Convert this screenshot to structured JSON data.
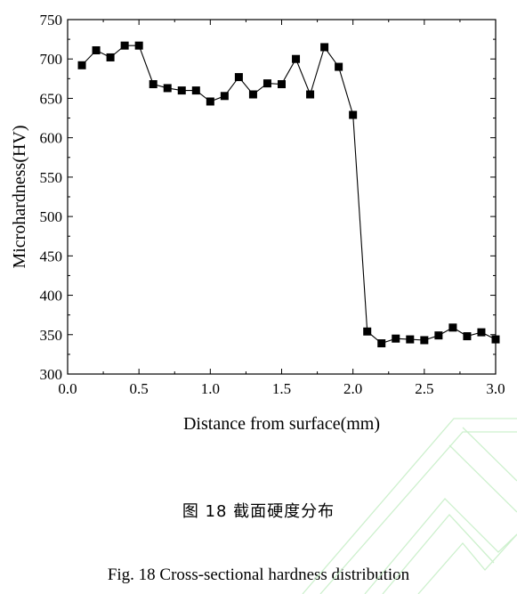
{
  "chart_data": {
    "type": "line",
    "xlabel": "Distance from surface(mm)",
    "ylabel": "Microhardness(HV)",
    "xlim": [
      0.0,
      3.0
    ],
    "ylim": [
      300,
      750
    ],
    "xticks": [
      "0.0",
      "0.5",
      "1.0",
      "1.5",
      "2.0",
      "2.5",
      "3.0"
    ],
    "yticks": [
      "300",
      "350",
      "400",
      "450",
      "500",
      "550",
      "600",
      "650",
      "700",
      "750"
    ],
    "marker": "square",
    "color": "#000000",
    "series": [
      {
        "x": [
          0.1,
          0.2,
          0.3,
          0.4,
          0.5,
          0.6,
          0.7,
          0.8,
          0.9,
          1.0,
          1.1,
          1.2,
          1.3,
          1.4,
          1.5,
          1.6,
          1.7,
          1.8,
          1.9,
          2.0,
          2.1,
          2.2,
          2.3,
          2.4,
          2.5,
          2.6,
          2.7,
          2.8,
          2.9,
          3.0
        ],
        "y": [
          692,
          711,
          702,
          717,
          717,
          668,
          663,
          660,
          660,
          646,
          653,
          677,
          655,
          669,
          668,
          700,
          655,
          715,
          690,
          629,
          354,
          339,
          345,
          344,
          343,
          349,
          359,
          348,
          353,
          344
        ]
      }
    ]
  },
  "caption_cn": "图  18  截面硬度分布",
  "caption_en": "Fig. 18 Cross-sectional hardness distribution",
  "watermark_color": "#c8efc8"
}
